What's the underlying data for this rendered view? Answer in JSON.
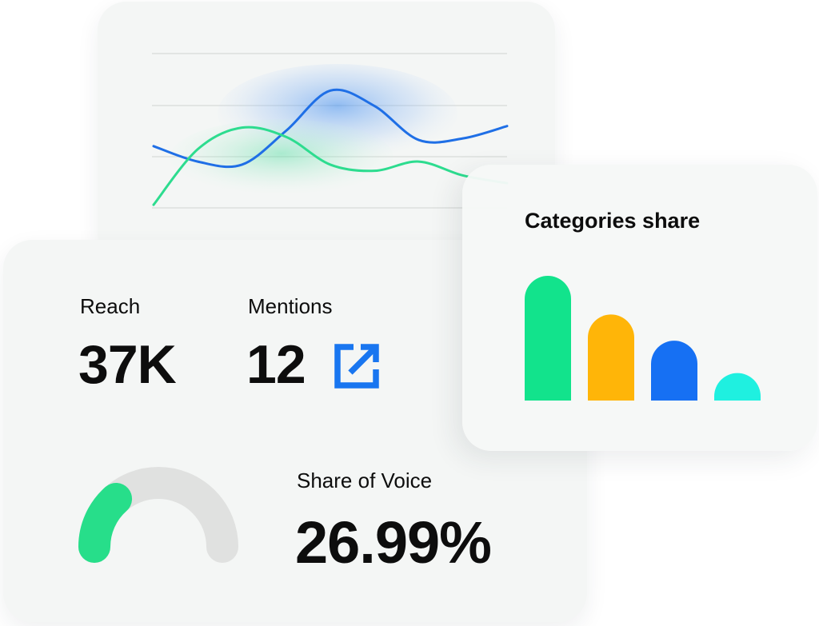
{
  "colors": {
    "blue_series": "#1f6fe6",
    "green_series": "#2ddc8f",
    "gauge_fill": "#27de8a",
    "gauge_track": "#e0e1e0",
    "link_icon": "#1976f0",
    "bar_green": "#12e38c",
    "bar_yellow": "#ffb508",
    "bar_blue": "#1670f3",
    "bar_cyan": "#1ff0e0"
  },
  "icons": {
    "external_link": "external-link-icon"
  },
  "stats": {
    "reach": {
      "label": "Reach",
      "value": "37K"
    },
    "mentions": {
      "label": "Mentions",
      "value": "12"
    },
    "share_of_voice": {
      "label": "Share of Voice",
      "value": "26.99%",
      "percent": 26.99
    }
  },
  "chart_data": [
    {
      "type": "line",
      "title": "",
      "grid": true,
      "x": [
        0,
        1,
        2,
        3,
        4,
        5,
        6,
        7,
        8
      ],
      "ylim": [
        0,
        100
      ],
      "series": [
        {
          "color": "#1f6fe6",
          "values": [
            40,
            30,
            28,
            50,
            76,
            66,
            44,
            45,
            53
          ]
        },
        {
          "color": "#2ddc8f",
          "values": [
            2,
            38,
            52,
            46,
            28,
            24,
            30,
            21,
            16
          ]
        }
      ]
    },
    {
      "type": "bar",
      "title": "Categories share",
      "categories": [
        "",
        "",
        "",
        ""
      ],
      "values": [
        100,
        69,
        48,
        22
      ],
      "colors": [
        "#12e38c",
        "#ffb508",
        "#1670f3",
        "#1ff0e0"
      ],
      "ylim": [
        0,
        100
      ]
    }
  ]
}
